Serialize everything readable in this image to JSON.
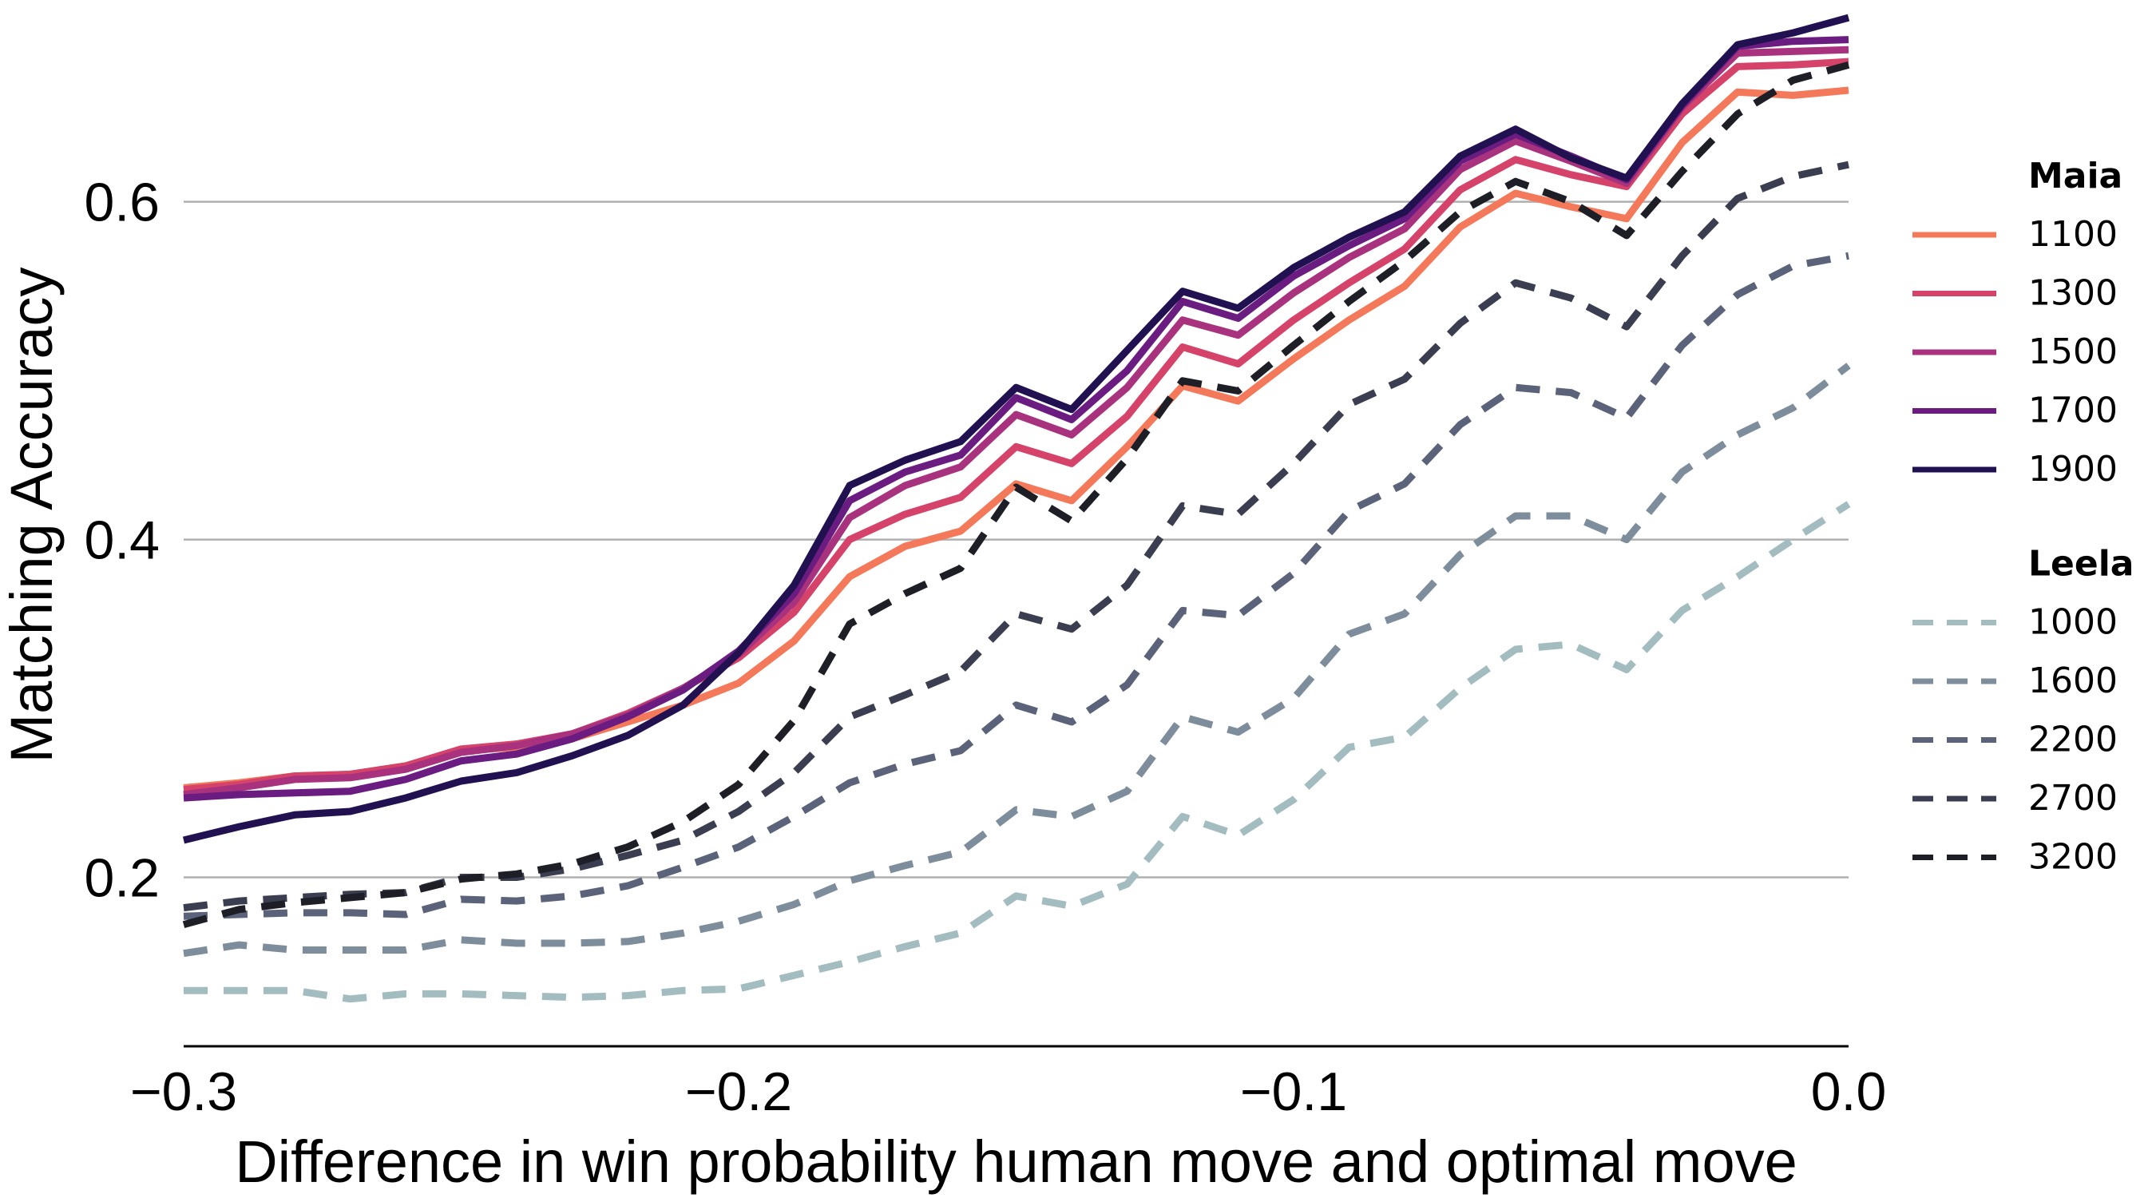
{
  "chart_data": {
    "type": "line",
    "title": "",
    "xlabel": "Difference in win probability human move and optimal move",
    "ylabel": "Matching Accuracy",
    "xlim": [
      -0.3,
      0.0
    ],
    "ylim": [
      0.1,
      0.71
    ],
    "x_ticks": [
      -0.3,
      -0.2,
      -0.1,
      0.0
    ],
    "x_tick_labels": [
      "−0.3",
      "−0.2",
      "−0.1",
      "0.0"
    ],
    "y_ticks": [
      0.2,
      0.4,
      0.6
    ],
    "y_tick_labels": [
      "0.2",
      "0.4",
      "0.6"
    ],
    "grid": "horizontal",
    "legend_position": "right",
    "x": [
      -0.3,
      -0.29,
      -0.28,
      -0.27,
      -0.26,
      -0.25,
      -0.24,
      -0.23,
      -0.22,
      -0.21,
      -0.2,
      -0.19,
      -0.18,
      -0.17,
      -0.16,
      -0.15,
      -0.14,
      -0.13,
      -0.12,
      -0.11,
      -0.1,
      -0.09,
      -0.08,
      -0.07,
      -0.06,
      -0.05,
      -0.04,
      -0.03,
      -0.02,
      -0.01,
      0.0
    ],
    "groups": [
      {
        "title": "Maia",
        "series": [
          {
            "name": "1100",
            "color": "#f4795b",
            "dash": "solid",
            "values": [
              0.253,
              0.256,
              0.26,
              0.261,
              0.266,
              0.275,
              0.277,
              0.282,
              0.292,
              0.302,
              0.315,
              0.34,
              0.378,
              0.396,
              0.405,
              0.433,
              0.423,
              0.455,
              0.491,
              0.482,
              0.507,
              0.53,
              0.55,
              0.585,
              0.605,
              0.597,
              0.59,
              0.635,
              0.665,
              0.663,
              0.666
            ]
          },
          {
            "name": "1300",
            "color": "#d5436a",
            "dash": "solid",
            "values": [
              0.252,
              0.255,
              0.26,
              0.261,
              0.266,
              0.276,
              0.279,
              0.285,
              0.297,
              0.312,
              0.33,
              0.357,
              0.4,
              0.415,
              0.425,
              0.455,
              0.445,
              0.473,
              0.514,
              0.504,
              0.53,
              0.552,
              0.572,
              0.607,
              0.625,
              0.616,
              0.609,
              0.652,
              0.68,
              0.681,
              0.683
            ]
          },
          {
            "name": "1500",
            "color": "#a8327d",
            "dash": "solid",
            "values": [
              0.249,
              0.253,
              0.258,
              0.259,
              0.264,
              0.274,
              0.278,
              0.285,
              0.296,
              0.312,
              0.332,
              0.363,
              0.413,
              0.432,
              0.443,
              0.474,
              0.462,
              0.49,
              0.53,
              0.521,
              0.546,
              0.567,
              0.584,
              0.619,
              0.636,
              0.624,
              0.611,
              0.656,
              0.688,
              0.689,
              0.69
            ]
          },
          {
            "name": "1700",
            "color": "#6a1c81",
            "dash": "solid",
            "values": [
              0.247,
              0.249,
              0.25,
              0.251,
              0.258,
              0.269,
              0.273,
              0.282,
              0.295,
              0.311,
              0.334,
              0.368,
              0.423,
              0.44,
              0.45,
              0.484,
              0.471,
              0.5,
              0.541,
              0.531,
              0.556,
              0.574,
              0.59,
              0.624,
              0.64,
              0.627,
              0.613,
              0.657,
              0.692,
              0.695,
              0.696
            ]
          },
          {
            "name": "1900",
            "color": "#221150",
            "dash": "solid",
            "values": [
              0.222,
              0.23,
              0.237,
              0.239,
              0.247,
              0.257,
              0.262,
              0.272,
              0.284,
              0.302,
              0.333,
              0.373,
              0.432,
              0.447,
              0.458,
              0.49,
              0.477,
              0.512,
              0.547,
              0.537,
              0.561,
              0.579,
              0.594,
              0.627,
              0.643,
              0.626,
              0.614,
              0.658,
              0.693,
              0.7,
              0.709
            ]
          }
        ]
      },
      {
        "title": "Leela",
        "series": [
          {
            "name": "1000",
            "color": "#a2bcbf",
            "dash": "dashed",
            "values": [
              0.133,
              0.133,
              0.133,
              0.128,
              0.131,
              0.131,
              0.13,
              0.129,
              0.13,
              0.133,
              0.134,
              0.142,
              0.15,
              0.159,
              0.167,
              0.189,
              0.183,
              0.196,
              0.236,
              0.225,
              0.246,
              0.277,
              0.283,
              0.312,
              0.335,
              0.338,
              0.323,
              0.358,
              0.378,
              0.4,
              0.421
            ]
          },
          {
            "name": "1600",
            "color": "#7d8d9c",
            "dash": "dashed",
            "values": [
              0.155,
              0.16,
              0.157,
              0.157,
              0.157,
              0.163,
              0.161,
              0.161,
              0.162,
              0.167,
              0.174,
              0.184,
              0.198,
              0.207,
              0.215,
              0.24,
              0.236,
              0.251,
              0.295,
              0.286,
              0.306,
              0.344,
              0.356,
              0.391,
              0.414,
              0.414,
              0.4,
              0.44,
              0.462,
              0.478,
              0.503
            ]
          },
          {
            "name": "2200",
            "color": "#5a637a",
            "dash": "dashed",
            "values": [
              0.177,
              0.178,
              0.179,
              0.179,
              0.178,
              0.187,
              0.186,
              0.189,
              0.195,
              0.206,
              0.218,
              0.236,
              0.256,
              0.267,
              0.275,
              0.302,
              0.292,
              0.314,
              0.358,
              0.355,
              0.38,
              0.417,
              0.433,
              0.468,
              0.49,
              0.487,
              0.472,
              0.515,
              0.545,
              0.562,
              0.568
            ]
          },
          {
            "name": "2700",
            "color": "#3b3e50",
            "dash": "dashed",
            "values": [
              0.182,
              0.186,
              0.188,
              0.19,
              0.191,
              0.2,
              0.2,
              0.205,
              0.213,
              0.222,
              0.239,
              0.262,
              0.295,
              0.308,
              0.322,
              0.356,
              0.347,
              0.373,
              0.42,
              0.415,
              0.445,
              0.48,
              0.495,
              0.528,
              0.552,
              0.543,
              0.526,
              0.568,
              0.602,
              0.615,
              0.622
            ]
          },
          {
            "name": "3200",
            "color": "#1d1e26",
            "dash": "dashed",
            "values": [
              0.172,
              0.181,
              0.185,
              0.188,
              0.191,
              0.199,
              0.202,
              0.208,
              0.218,
              0.233,
              0.255,
              0.293,
              0.35,
              0.368,
              0.383,
              0.431,
              0.411,
              0.448,
              0.494,
              0.488,
              0.515,
              0.541,
              0.565,
              0.594,
              0.612,
              0.6,
              0.58,
              0.618,
              0.652,
              0.672,
              0.681
            ]
          }
        ]
      }
    ]
  }
}
